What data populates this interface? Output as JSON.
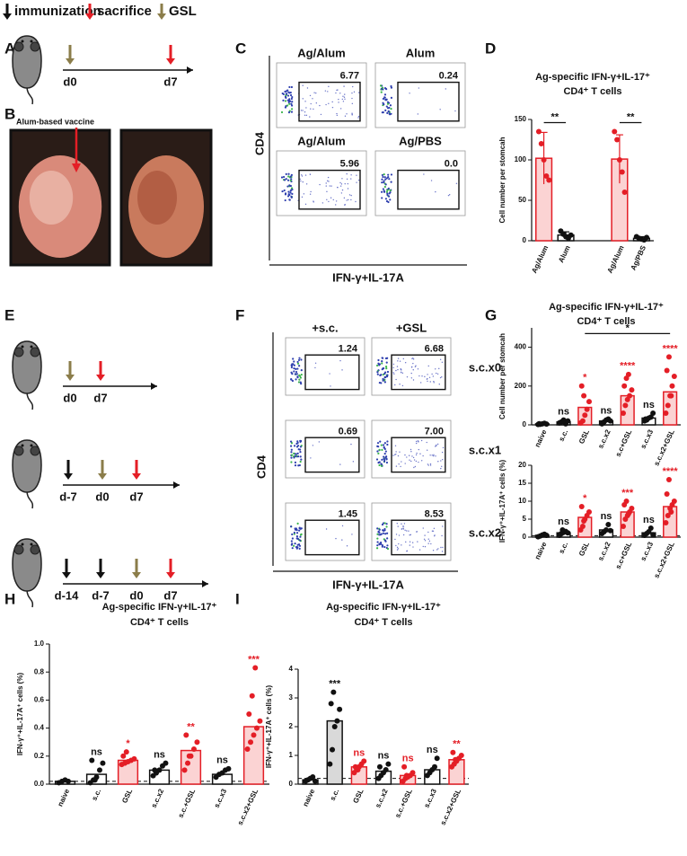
{
  "legend": {
    "items": [
      "immunization",
      "sacrifice",
      "GSL"
    ]
  },
  "panel_labels": [
    "A",
    "B",
    "C",
    "D",
    "E",
    "F",
    "G",
    "H",
    "I"
  ],
  "timeline_a": {
    "days": [
      "d0",
      "d7"
    ]
  },
  "photo": {
    "label": "Alum-based vaccine"
  },
  "flow_c": {
    "y_label": "CD4",
    "x_label": "IFN-γ+IL-17A",
    "plots": [
      {
        "title": "Ag/Alum",
        "gate": "6.77"
      },
      {
        "title": "Alum",
        "gate": "0.24"
      },
      {
        "title": "Ag/Alum",
        "gate": "5.96"
      },
      {
        "title": "Ag/PBS",
        "gate": "0.0"
      }
    ]
  },
  "timelines_e": [
    {
      "days": [
        "d0",
        "d7"
      ]
    },
    {
      "days": [
        "d-7",
        "d0",
        "d7"
      ]
    },
    {
      "days": [
        "d-14",
        "d-7",
        "d0",
        "d7"
      ]
    }
  ],
  "flow_f": {
    "y_label": "CD4",
    "x_label": "IFN-γ+IL-17A",
    "columns": [
      "+s.c.",
      "+GSL"
    ],
    "rows": [
      "s.c.x0",
      "s.c.x1",
      "s.c.x2"
    ],
    "gates": [
      [
        "1.24",
        "6.68"
      ],
      [
        "0.69",
        "7.00"
      ],
      [
        "1.45",
        "8.53"
      ]
    ]
  },
  "chart_data": [
    {
      "type": "bar",
      "title": [
        "Ag-specific IFN-γ+IL-17⁺",
        "CD4⁺ T cells"
      ],
      "ylabel": "Cell number per stomcah",
      "categories": [
        "Ag/Alum",
        "Alum",
        "Ag/Alum",
        "Ag/PBS"
      ],
      "values": [
        102,
        7,
        101,
        3
      ],
      "errors": [
        32,
        4,
        30,
        2
      ],
      "points": [
        [
          135,
          120,
          100,
          80,
          75
        ],
        [
          12,
          8,
          5,
          3,
          7
        ],
        [
          135,
          125,
          100,
          85,
          60
        ],
        [
          5,
          3,
          2,
          1,
          4
        ]
      ],
      "colors": [
        "#e41e26",
        "#111111",
        "#e41e26",
        "#111111"
      ],
      "fills": [
        "#fbd3d3",
        "#ffffff",
        "#fbd3d3",
        "#ffffff"
      ],
      "comparisons": [
        {
          "between": [
            0,
            1
          ],
          "label": "**"
        },
        {
          "between": [
            2,
            3
          ],
          "label": "**"
        }
      ],
      "ylim": [
        0,
        150
      ],
      "yticks": [
        0,
        50,
        100,
        150
      ]
    },
    {
      "type": "bar",
      "title": [
        "Ag-specific IFN-γ+IL-17⁺",
        "CD4⁺ T cells"
      ],
      "ylabel": "Cell number per stomcah",
      "categories": [
        "naive",
        "s.c.",
        "GSL",
        "s.c.x2",
        "s.c+GSL",
        "s.c.x3",
        "s.c.x2+GSL"
      ],
      "values": [
        5,
        15,
        90,
        20,
        150,
        35,
        170
      ],
      "points": [
        [
          2,
          3,
          5,
          8,
          4,
          6
        ],
        [
          10,
          15,
          25,
          5,
          20,
          12,
          18
        ],
        [
          10,
          20,
          50,
          80,
          120,
          200,
          150
        ],
        [
          5,
          15,
          25,
          30,
          20,
          10
        ],
        [
          60,
          100,
          130,
          150,
          180,
          200,
          240,
          260
        ],
        [
          20,
          25,
          35,
          40,
          60,
          30
        ],
        [
          60,
          100,
          150,
          200,
          250,
          280,
          350,
          150
        ]
      ],
      "colors": [
        "#111111",
        "#111111",
        "#e41e26",
        "#111111",
        "#e41e26",
        "#111111",
        "#e41e26"
      ],
      "fills": [
        "#ffffff",
        "#ffffff",
        "#fbd3d3",
        "#ffffff",
        "#fbd3d3",
        "#ffffff",
        "#fbd3d3"
      ],
      "annotations": [
        null,
        "ns",
        "*",
        "ns",
        "****",
        "ns",
        "****"
      ],
      "comparisons": [
        {
          "between": [
            2,
            6
          ],
          "label": "*"
        }
      ],
      "ylim": [
        0,
        500
      ],
      "yticks": [
        0,
        200,
        400
      ]
    },
    {
      "type": "bar",
      "ylabel": "IFN-γ⁺+IL-17A⁺ cells (%)",
      "categories": [
        "naive",
        "s.c.",
        "GSL",
        "s.c.x2",
        "s.c+GSL",
        "s.c.x3",
        "s.c.x2+GSL"
      ],
      "values": [
        0.5,
        1.2,
        5.5,
        2,
        7,
        1.2,
        8.5
      ],
      "points": [
        [
          0.1,
          0.3,
          0.6,
          0.8,
          0.5
        ],
        [
          0.5,
          1,
          1.3,
          1.6,
          1.2,
          0.8,
          2
        ],
        [
          2,
          3,
          5,
          6,
          7,
          8.5,
          4.5
        ],
        [
          1,
          1.5,
          2,
          3.5,
          1.8
        ],
        [
          3,
          5,
          6,
          7,
          8,
          9,
          10,
          6.5
        ],
        [
          0.5,
          1,
          1.5,
          2.5,
          0.7
        ],
        [
          4,
          6,
          8,
          9,
          10,
          12,
          16,
          7
        ]
      ],
      "colors": [
        "#111111",
        "#111111",
        "#e41e26",
        "#111111",
        "#e41e26",
        "#111111",
        "#e41e26"
      ],
      "fills": [
        "#ffffff",
        "#ffffff",
        "#fbd3d3",
        "#ffffff",
        "#fbd3d3",
        "#ffffff",
        "#fbd3d3"
      ],
      "annotations": [
        null,
        "ns",
        "*",
        "ns",
        "***",
        "ns",
        "****"
      ],
      "reference_line": 0.4,
      "ylim": [
        0,
        20
      ],
      "yticks": [
        0,
        5,
        10,
        15,
        20
      ]
    },
    {
      "type": "bar",
      "title": [
        "Ag-specific IFN-γ+IL-17⁺",
        "CD4⁺ T cells"
      ],
      "ylabel": "IFN-γ⁺+IL-17A⁺ cells (%)",
      "categories": [
        "naive",
        "s.c.",
        "GSL",
        "s.c.x2",
        "s.c.+GSL",
        "s.c.x3",
        "s.c.x2+GSL"
      ],
      "values": [
        0.02,
        0.07,
        0.17,
        0.1,
        0.24,
        0.07,
        0.41
      ],
      "points": [
        [
          0.01,
          0.02,
          0.03,
          0.02
        ],
        [
          0.01,
          0.03,
          0.05,
          0.1,
          0.15,
          0.17,
          0.03
        ],
        [
          0.14,
          0.15,
          0.16,
          0.17,
          0.18,
          0.2,
          0.23
        ],
        [
          0.06,
          0.08,
          0.1,
          0.13,
          0.15,
          0.1
        ],
        [
          0.1,
          0.15,
          0.2,
          0.25,
          0.3,
          0.35,
          0.2
        ],
        [
          0.05,
          0.07,
          0.08,
          0.1,
          0.11
        ],
        [
          0.25,
          0.3,
          0.35,
          0.4,
          0.45,
          0.5,
          0.63,
          0.83
        ]
      ],
      "colors": [
        "#111111",
        "#111111",
        "#e41e26",
        "#111111",
        "#e41e26",
        "#111111",
        "#e41e26"
      ],
      "fills": [
        "#ffffff",
        "#ffffff",
        "#fbd3d3",
        "#ffffff",
        "#fbd3d3",
        "#ffffff",
        "#fbd3d3"
      ],
      "annotations": [
        null,
        "ns",
        "*",
        "ns",
        "**",
        "ns",
        "***"
      ],
      "reference_line": 0.02,
      "ylim": [
        0,
        1
      ],
      "yticks": [
        {
          "value": 0,
          "label": "0.0"
        },
        0.2,
        0.4,
        0.6,
        0.8,
        {
          "value": 1,
          "label": "1.0"
        }
      ]
    },
    {
      "type": "bar",
      "title": [
        "Ag-specific IFN-γ+IL-17⁺",
        "CD4⁺ T cells"
      ],
      "ylabel": "IFN-γ⁺+IL-17A⁺ cells (%)",
      "categories": [
        "naive",
        "s.c.",
        "GSL",
        "s.c.x2",
        "s.c.+GSL",
        "s.c.x3",
        "s.c.x2+GSL"
      ],
      "values": [
        0.15,
        2.2,
        0.6,
        0.45,
        0.3,
        0.5,
        0.85
      ],
      "points": [
        [
          0.1,
          0.15,
          0.2,
          0.25,
          0.1
        ],
        [
          0.7,
          1.2,
          2,
          2.2,
          2.6,
          2.8,
          3.2
        ],
        [
          0.4,
          0.5,
          0.6,
          0.7,
          0.8,
          0.6,
          0.5
        ],
        [
          0.2,
          0.3,
          0.4,
          0.5,
          0.7,
          0.6
        ],
        [
          0.1,
          0.2,
          0.25,
          0.3,
          0.4,
          0.6,
          0.3
        ],
        [
          0.3,
          0.4,
          0.5,
          0.6,
          0.9
        ],
        [
          0.6,
          0.7,
          0.8,
          0.9,
          1,
          1.1,
          0.85
        ]
      ],
      "colors": [
        "#111111",
        "#111111",
        "#e41e26",
        "#111111",
        "#e41e26",
        "#111111",
        "#e41e26"
      ],
      "fills": [
        "#ffffff",
        "#d9d9d9",
        "#fbd3d3",
        "#ffffff",
        "#fbd3d3",
        "#ffffff",
        "#fbd3d3"
      ],
      "annotations": [
        null,
        "***",
        "ns",
        "ns",
        "ns",
        "ns",
        "**"
      ],
      "reference_line": 0.2,
      "ylim": [
        0,
        4
      ],
      "yticks": [
        0,
        1,
        2,
        3,
        4
      ]
    }
  ]
}
